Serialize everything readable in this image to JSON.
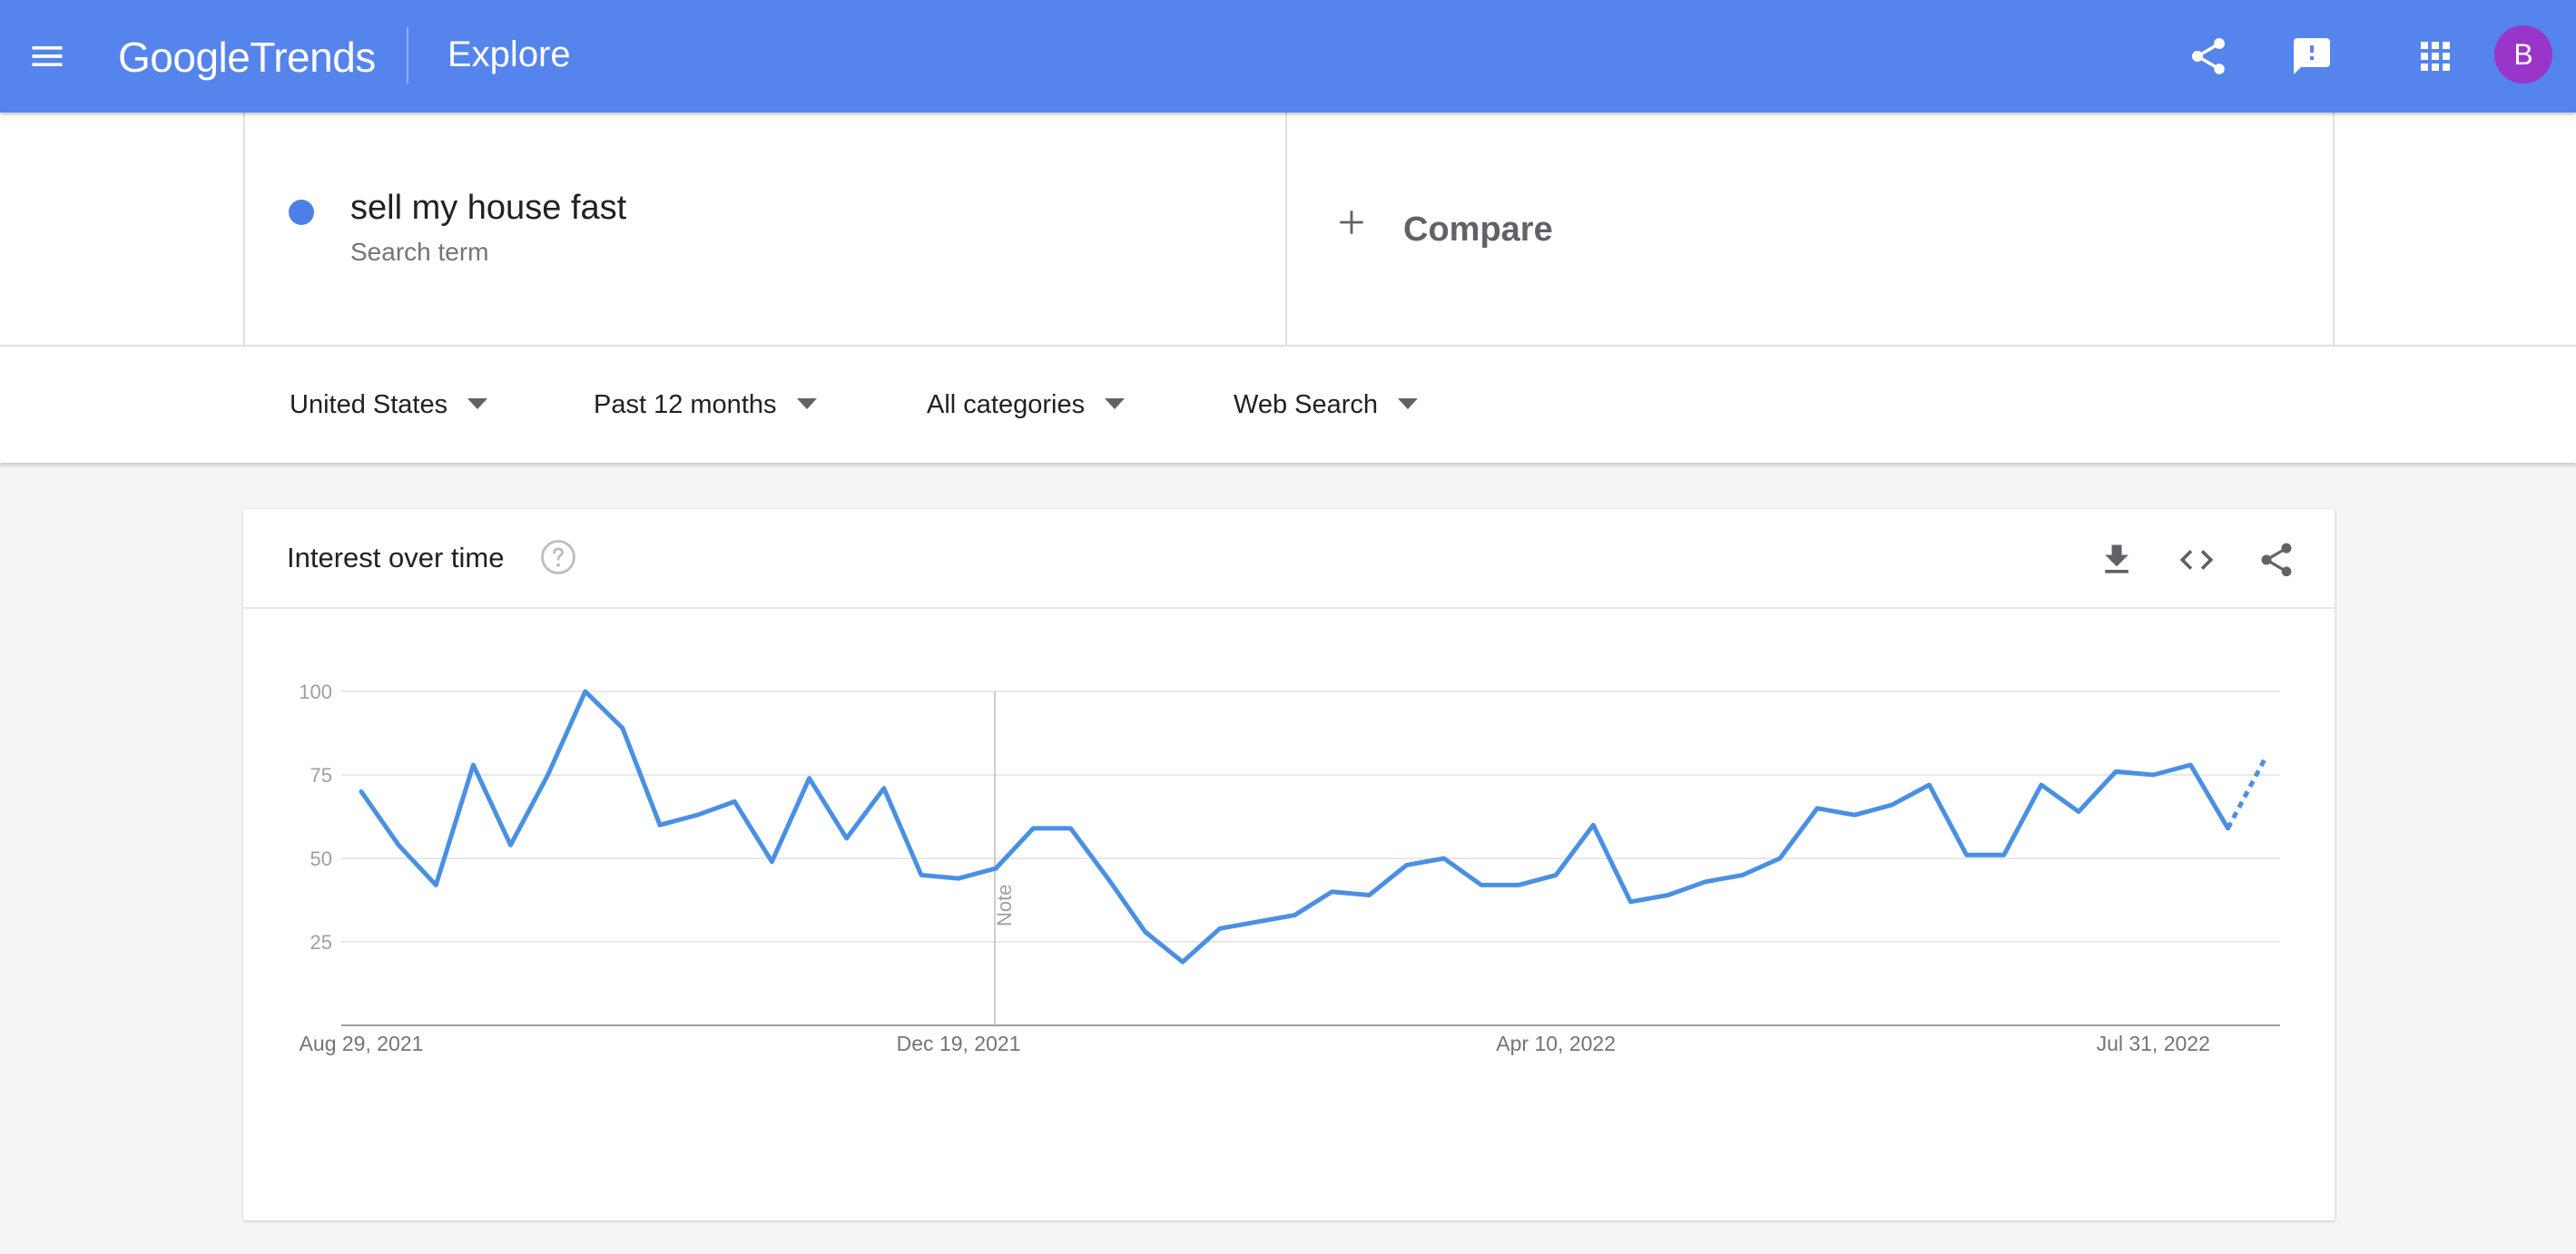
{
  "header": {
    "logo_google": "Google",
    "logo_trends": "Trends",
    "page_title": "Explore",
    "avatar_letter": "B",
    "icons": [
      "menu-icon",
      "share-icon",
      "feedback-icon",
      "apps-icon"
    ]
  },
  "search": {
    "term": "sell my house fast",
    "term_type": "Search term",
    "term_color": "#4e7fe6",
    "compare_label": "Compare"
  },
  "filters": [
    {
      "label": "United States"
    },
    {
      "label": "Past 12 months"
    },
    {
      "label": "All categories"
    },
    {
      "label": "Web Search"
    }
  ],
  "card": {
    "title": "Interest over time",
    "tools": [
      "download-icon",
      "embed-icon",
      "share-icon"
    ]
  },
  "chart_data": {
    "type": "line",
    "title": "Interest over time",
    "ylim": [
      0,
      100
    ],
    "y_ticks": [
      25,
      50,
      75,
      100
    ],
    "x_tick_labels": [
      "Aug 29, 2021",
      "Dec 19, 2021",
      "Apr 10, 2022",
      "Jul 31, 2022"
    ],
    "x_tick_indices": [
      0,
      16,
      32,
      48
    ],
    "note_index": 17,
    "note_label": "Note",
    "grid": true,
    "line_color": "#4a90e2",
    "partial_last_point": true,
    "series": [
      {
        "values": [
          70,
          54,
          42,
          78,
          54,
          75,
          100,
          89,
          60,
          63,
          67,
          49,
          74,
          56,
          71,
          45,
          44,
          47,
          59,
          59,
          44,
          28,
          19,
          29,
          31,
          33,
          40,
          39,
          48,
          50,
          42,
          42,
          45,
          60,
          37,
          39,
          43,
          45,
          50,
          65,
          63,
          66,
          72,
          51,
          51,
          72,
          64,
          76,
          75,
          78,
          59,
          80
        ]
      }
    ]
  }
}
